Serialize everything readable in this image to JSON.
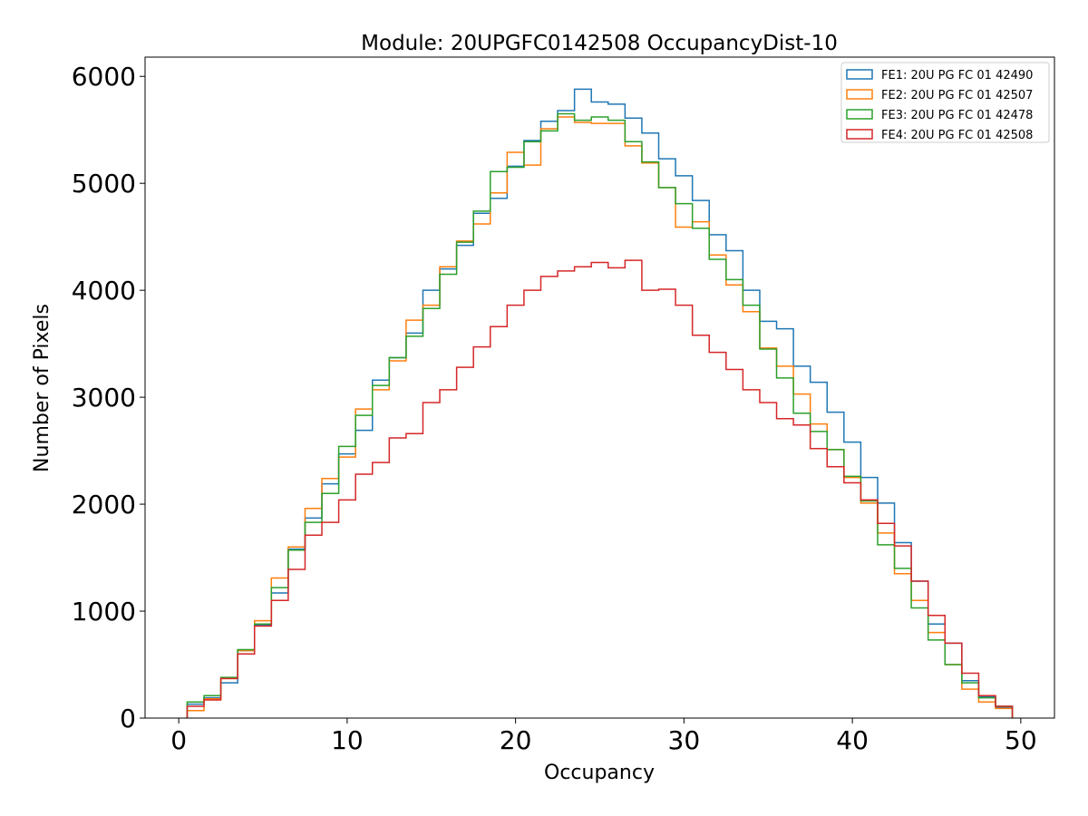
{
  "chart_data": {
    "type": "histogram-step",
    "title": "Module: 20UPGFC0142508 OccupancyDist-10",
    "xlabel": "Occupancy",
    "ylabel": "Number of Pixels",
    "xlim": [
      -2,
      52
    ],
    "ylim": [
      0,
      6180
    ],
    "xticks": [
      0,
      10,
      20,
      30,
      40,
      50
    ],
    "yticks": [
      0,
      1000,
      2000,
      3000,
      4000,
      5000,
      6000
    ],
    "bin_start": 0.5,
    "bin_width": 1,
    "legend_position": "top-right",
    "series": [
      {
        "name": "FE1: 20U PG FC 01 42490",
        "color": "#1f77b4",
        "values": [
          130,
          190,
          330,
          630,
          870,
          1170,
          1580,
          1870,
          2190,
          2470,
          2690,
          3160,
          3370,
          3600,
          4000,
          4200,
          4420,
          4720,
          4860,
          5160,
          5400,
          5580,
          5680,
          5880,
          5760,
          5740,
          5610,
          5470,
          5230,
          5070,
          4840,
          4520,
          4370,
          4000,
          3710,
          3640,
          3290,
          3140,
          2860,
          2580,
          2250,
          2010,
          1640,
          1280,
          880,
          700,
          350,
          200,
          100
        ]
      },
      {
        "name": "FE2: 20U PG FC 01 42507",
        "color": "#ff7f0e",
        "values": [
          70,
          180,
          370,
          630,
          910,
          1310,
          1600,
          1960,
          2240,
          2440,
          2890,
          3070,
          3340,
          3720,
          3860,
          4220,
          4460,
          4620,
          4910,
          5290,
          5170,
          5510,
          5620,
          5570,
          5560,
          5560,
          5350,
          5190,
          4960,
          4590,
          4640,
          4330,
          4050,
          3800,
          3460,
          3290,
          3030,
          2750,
          2510,
          2250,
          2010,
          1730,
          1350,
          1100,
          800,
          500,
          270,
          150,
          90
        ]
      },
      {
        "name": "FE3: 20U PG FC 01 42478",
        "color": "#2ca02c",
        "values": [
          150,
          210,
          380,
          640,
          880,
          1220,
          1570,
          1830,
          2100,
          2540,
          2830,
          3110,
          3370,
          3570,
          3830,
          4150,
          4450,
          4740,
          5110,
          5150,
          5390,
          5490,
          5650,
          5590,
          5620,
          5590,
          5390,
          5200,
          4960,
          4810,
          4580,
          4290,
          4100,
          3860,
          3450,
          3180,
          2850,
          2680,
          2510,
          2260,
          2030,
          1620,
          1400,
          1030,
          730,
          500,
          330,
          190,
          110
        ]
      },
      {
        "name": "FE4: 20U PG FC 01 42508",
        "color": "#d62728",
        "values": [
          110,
          170,
          370,
          600,
          860,
          1100,
          1390,
          1710,
          1830,
          2040,
          2280,
          2390,
          2620,
          2660,
          2950,
          3070,
          3280,
          3470,
          3660,
          3860,
          4000,
          4130,
          4180,
          4220,
          4260,
          4210,
          4280,
          4000,
          4010,
          3860,
          3580,
          3420,
          3260,
          3070,
          2950,
          2800,
          2740,
          2520,
          2350,
          2200,
          2040,
          1820,
          1610,
          1280,
          960,
          700,
          420,
          210,
          110
        ]
      }
    ]
  }
}
